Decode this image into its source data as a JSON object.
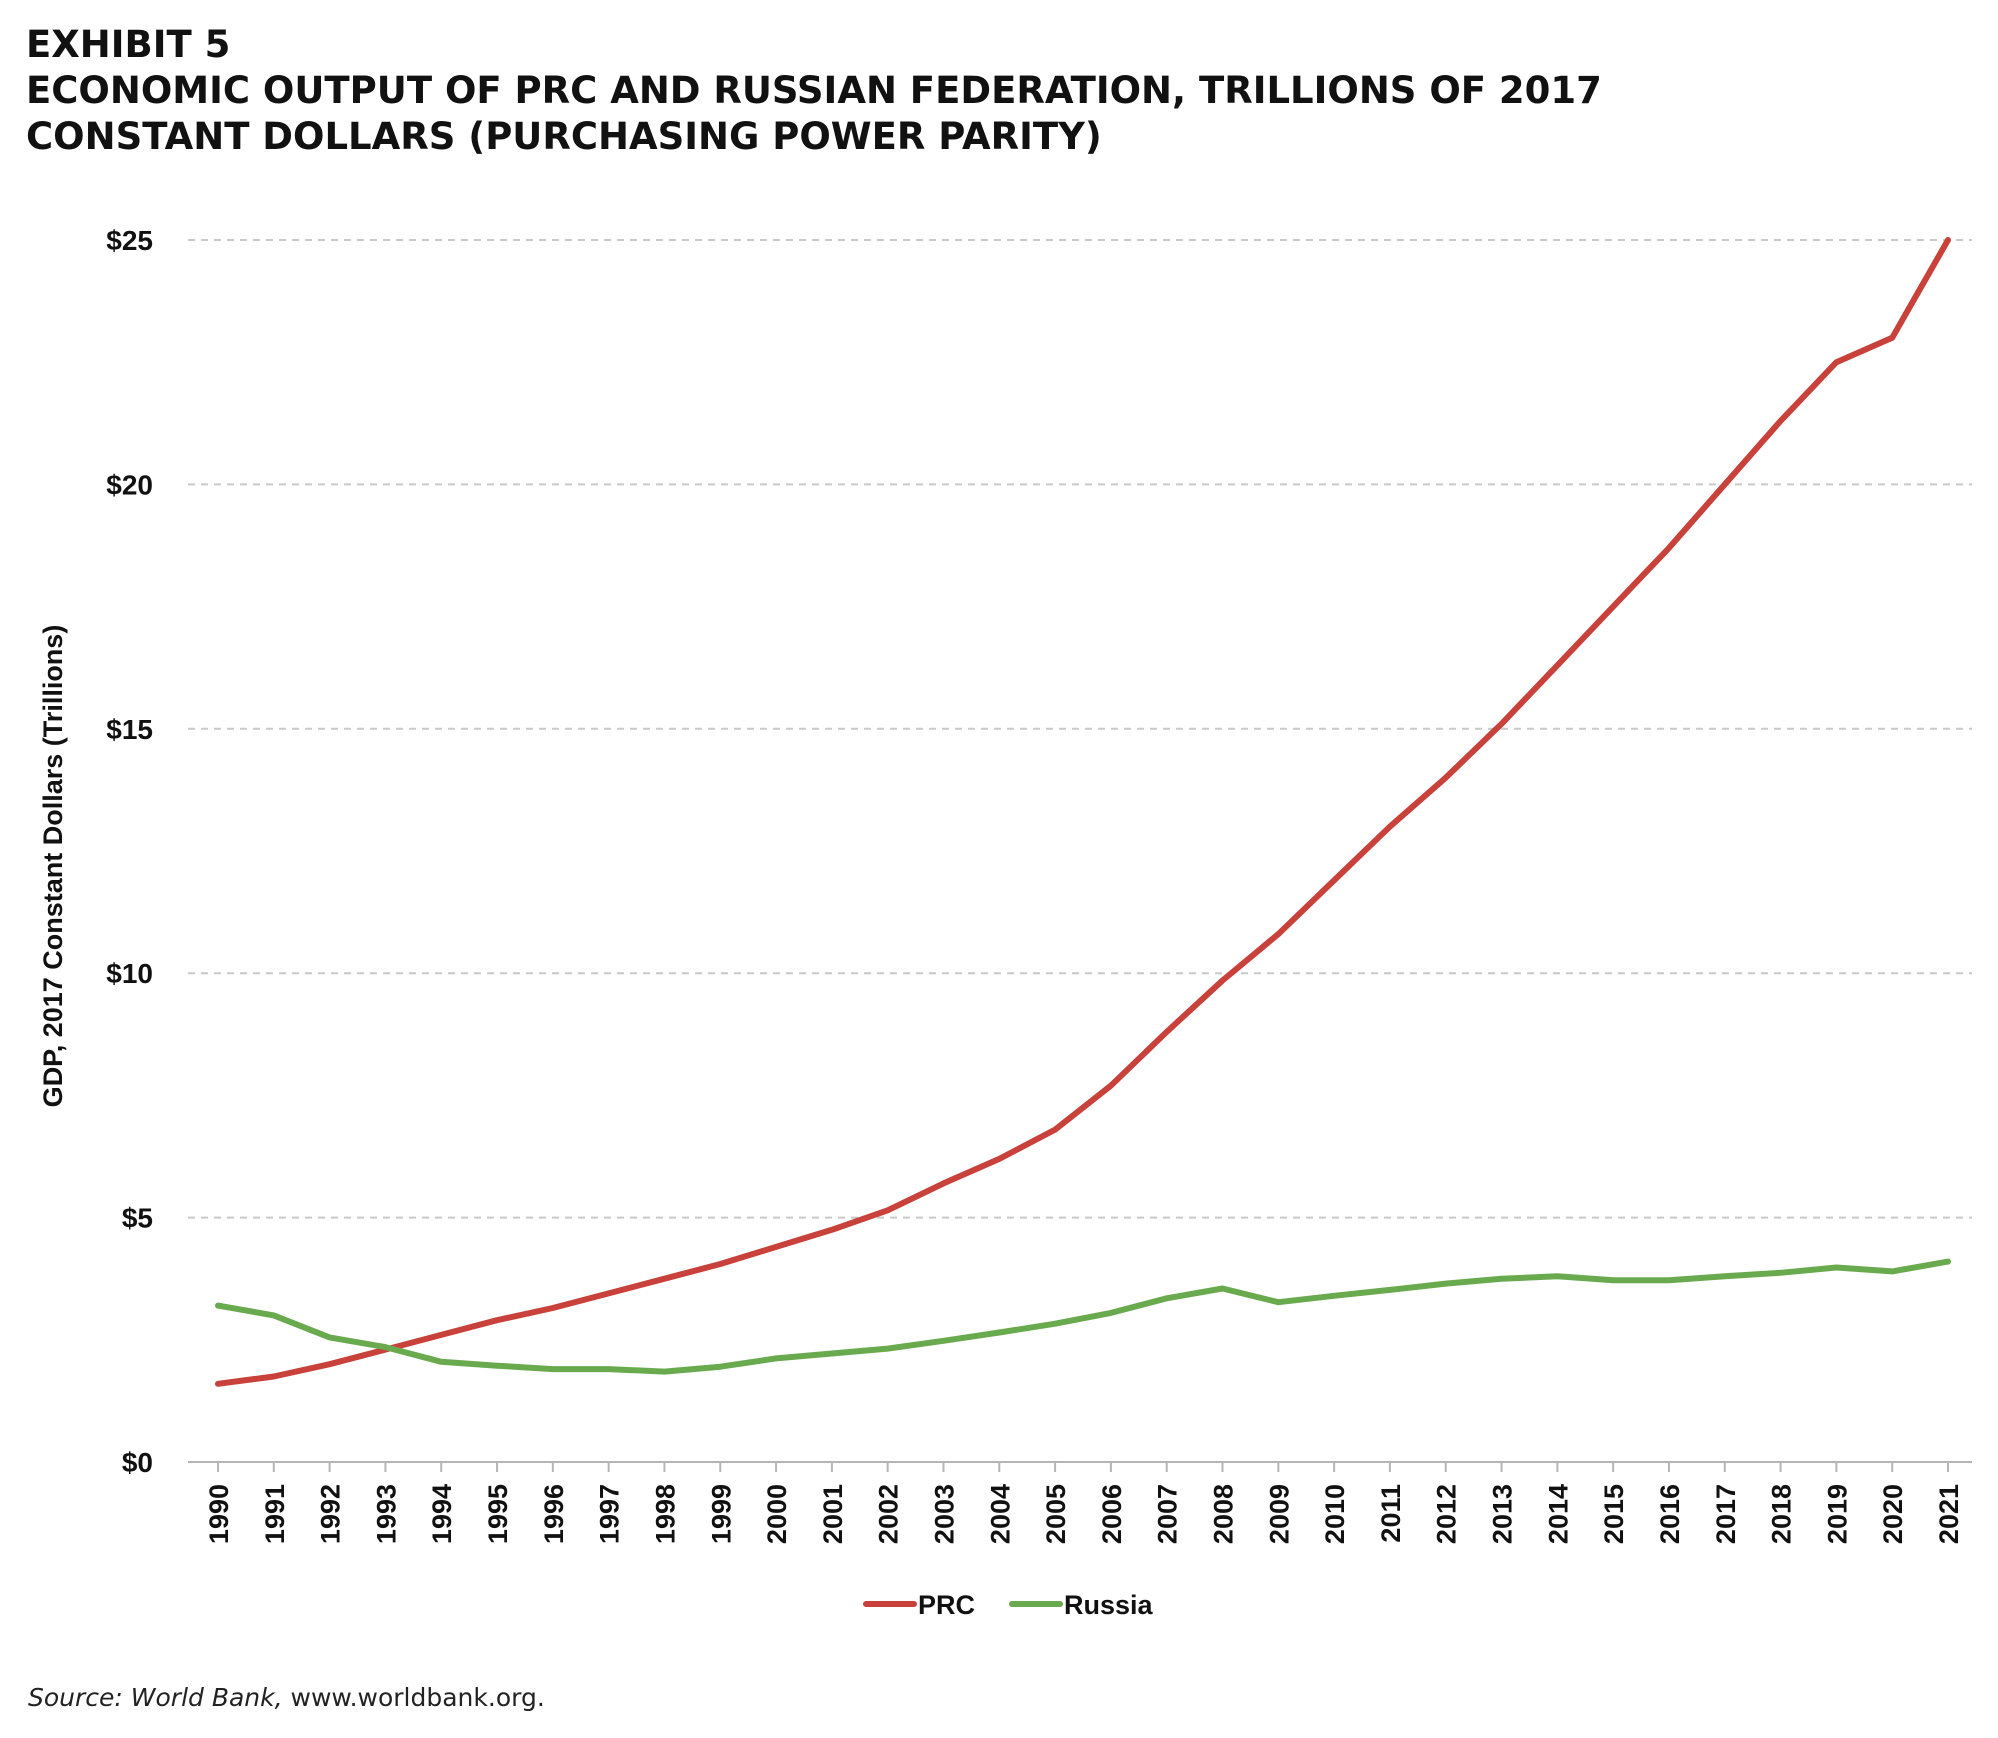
{
  "header": {
    "exhibit": "EXHIBIT 5",
    "title_line1": "ECONOMIC OUTPUT OF PRC AND RUSSIAN FEDERATION, TRILLIONS OF 2017",
    "title_line2": "CONSTANT DOLLARS (PURCHASING POWER PARITY)"
  },
  "source": {
    "label": "Source: World Bank,",
    "url": "www.worldbank.org."
  },
  "chart_data": {
    "type": "line",
    "title": "ECONOMIC OUTPUT OF PRC AND RUSSIAN FEDERATION, TRILLIONS OF 2017 CONSTANT DOLLARS (PURCHASING POWER PARITY)",
    "ylabel": "GDP, 2017 Constant Dollars (Trillions)",
    "xlabel": "",
    "ylim": [
      0,
      25
    ],
    "yticks": [
      0,
      5,
      10,
      15,
      20,
      25
    ],
    "ytick_labels": [
      "$0",
      "$5",
      "$10",
      "$15",
      "$20",
      "$25"
    ],
    "grid": "horizontal-dashed",
    "legend_position": "bottom-center",
    "x": [
      "1990",
      "1991",
      "1992",
      "1993",
      "1994",
      "1995",
      "1996",
      "1997",
      "1998",
      "1999",
      "2000",
      "2001",
      "2002",
      "2003",
      "2004",
      "2005",
      "2006",
      "2007",
      "2008",
      "2009",
      "2010",
      "2011",
      "2012",
      "2013",
      "2014",
      "2015",
      "2016",
      "2017",
      "2018",
      "2019",
      "2020",
      "2021"
    ],
    "series": [
      {
        "name": "PRC",
        "color": "#c8413a",
        "values": [
          1.6,
          1.75,
          2.0,
          2.3,
          2.6,
          2.9,
          3.15,
          3.45,
          3.75,
          4.05,
          4.4,
          4.75,
          5.15,
          5.7,
          6.2,
          6.8,
          7.7,
          8.8,
          9.85,
          10.8,
          11.9,
          13.0,
          14.0,
          15.1,
          16.3,
          17.5,
          18.7,
          20.0,
          21.3,
          22.5,
          23.0,
          25.0
        ]
      },
      {
        "name": "Russia",
        "color": "#6aaa4e",
        "values": [
          3.2,
          3.0,
          2.55,
          2.35,
          2.05,
          1.97,
          1.9,
          1.9,
          1.85,
          1.95,
          2.12,
          2.22,
          2.32,
          2.48,
          2.65,
          2.83,
          3.05,
          3.35,
          3.55,
          3.27,
          3.4,
          3.52,
          3.65,
          3.75,
          3.8,
          3.72,
          3.72,
          3.8,
          3.87,
          3.98,
          3.9,
          4.1
        ]
      }
    ]
  }
}
